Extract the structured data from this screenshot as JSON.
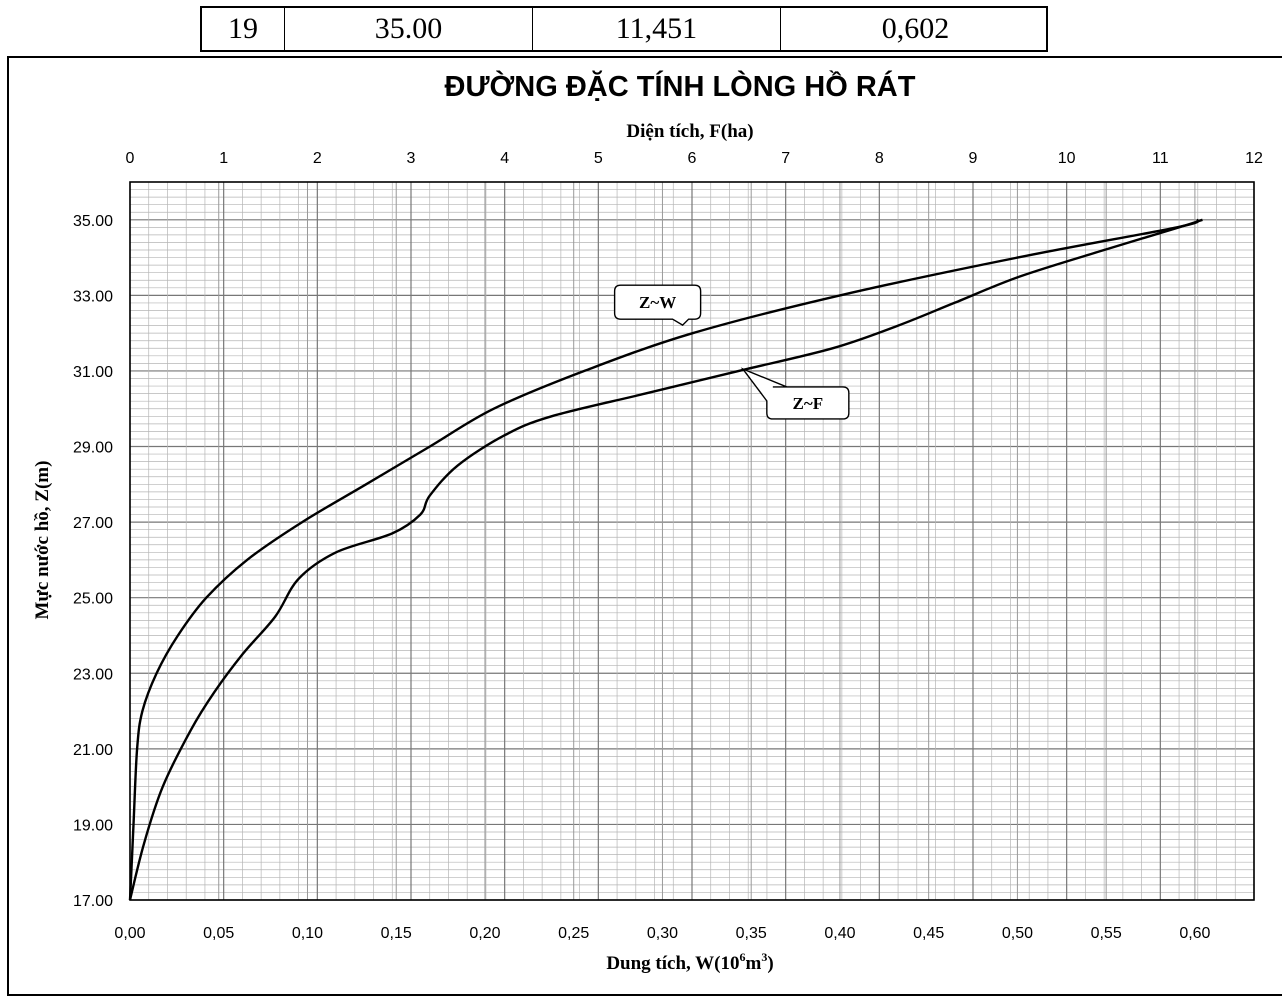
{
  "table": {
    "cells": [
      "19",
      "35.00",
      "11,451",
      "0,602"
    ]
  },
  "chart_data": {
    "type": "line",
    "title": "ĐƯỜNG ĐẶC TÍNH LÒNG HỒ RÁT",
    "x_top_label": "Diện tích, F(ha)",
    "x_bottom_label_main": "Dung tích, W(10",
    "x_bottom_label_exp": "6",
    "x_bottom_label_tail": "m",
    "x_bottom_label_exp2": "3",
    "x_bottom_label_close": ")",
    "ylabel": "Mực nước hồ, Z(m)",
    "top_ticks": [
      "0",
      "1",
      "2",
      "3",
      "4",
      "5",
      "6",
      "7",
      "8",
      "9",
      "10",
      "11",
      "12"
    ],
    "bottom_ticks": [
      "0,00",
      "0,05",
      "0,10",
      "0,15",
      "0,20",
      "0,25",
      "0,30",
      "0,35",
      "0,40",
      "0,45",
      "0,50",
      "0,55",
      "0,60"
    ],
    "y_ticks": [
      "35.00",
      "33.00",
      "31.00",
      "29.00",
      "27.00",
      "25.00",
      "23.00",
      "21.00",
      "19.00",
      "17.00"
    ],
    "ylim": [
      17,
      36
    ],
    "xlim_top": [
      0,
      12
    ],
    "xlim_bottom": [
      0,
      0.6333
    ],
    "grid": true,
    "series": [
      {
        "name": "Z~W",
        "axis": "bottom",
        "points": [
          [
            0,
            17
          ],
          [
            0.002,
            19
          ],
          [
            0.004,
            21
          ],
          [
            0.007,
            22
          ],
          [
            0.015,
            23
          ],
          [
            0.027,
            24
          ],
          [
            0.043,
            25
          ],
          [
            0.066,
            26
          ],
          [
            0.097,
            27
          ],
          [
            0.133,
            28
          ],
          [
            0.169,
            29
          ],
          [
            0.205,
            30
          ],
          [
            0.256,
            31
          ],
          [
            0.317,
            32
          ],
          [
            0.4,
            33
          ],
          [
            0.5,
            34
          ],
          [
            0.59,
            34.8
          ],
          [
            0.602,
            35
          ]
        ]
      },
      {
        "name": "Z~F",
        "axis": "top",
        "points": [
          [
            0,
            17
          ],
          [
            0.15,
            18.5
          ],
          [
            0.35,
            20
          ],
          [
            0.65,
            21.5
          ],
          [
            0.9,
            22.5
          ],
          [
            1.2,
            23.5
          ],
          [
            1.55,
            24.5
          ],
          [
            1.8,
            25.5
          ],
          [
            2.2,
            26.2
          ],
          [
            2.8,
            26.7
          ],
          [
            3.1,
            27.2
          ],
          [
            3.2,
            27.7
          ],
          [
            3.5,
            28.5
          ],
          [
            4.0,
            29.3
          ],
          [
            4.5,
            29.8
          ],
          [
            5.5,
            30.4
          ],
          [
            6.5,
            31.0
          ],
          [
            7.5,
            31.6
          ],
          [
            8.2,
            32.2
          ],
          [
            8.8,
            32.8
          ],
          [
            9.5,
            33.5
          ],
          [
            10.4,
            34.2
          ],
          [
            11.2,
            34.8
          ],
          [
            11.45,
            35
          ]
        ]
      }
    ]
  }
}
